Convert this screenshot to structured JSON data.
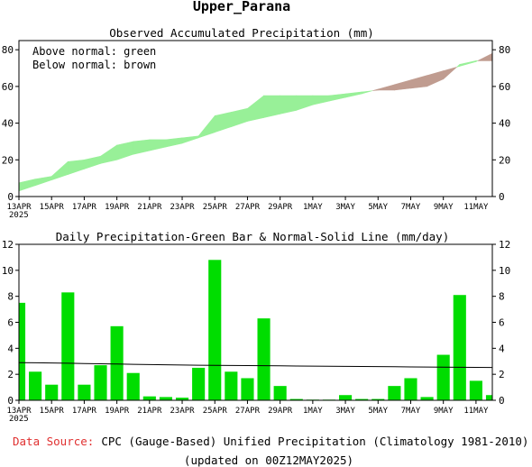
{
  "figure_title": "Upper_Parana",
  "footer": {
    "source_label": "Data Source:",
    "source_text": "CPC (Gauge-Based) Unified Precipitation (Climatology 1981-2010)",
    "updated": "(updated on 00Z12MAY2025)"
  },
  "colors": {
    "above": "#98f098",
    "below": "#c09c90",
    "bar": "#00dd00",
    "normal_line": "#000000",
    "source_label": "#e03030"
  },
  "chart_data": [
    {
      "type": "area",
      "title": "Observed Accumulated Precipitation (mm)",
      "legend": [
        "Above normal: green",
        "Below normal: brown"
      ],
      "legend_position": "top-left",
      "ylim": [
        0,
        85
      ],
      "yticks": [
        0,
        20,
        40,
        60,
        80
      ],
      "x": [
        "13APR",
        "14APR",
        "15APR",
        "16APR",
        "17APR",
        "18APR",
        "19APR",
        "20APR",
        "21APR",
        "22APR",
        "23APR",
        "24APR",
        "25APR",
        "26APR",
        "27APR",
        "28APR",
        "29APR",
        "30APR",
        "1MAY",
        "2MAY",
        "3MAY",
        "4MAY",
        "5MAY",
        "6MAY",
        "7MAY",
        "8MAY",
        "9MAY",
        "10MAY",
        "11MAY",
        "12MAY"
      ],
      "xtick_labels": [
        "13APR",
        "15APR",
        "17APR",
        "19APR",
        "21APR",
        "23APR",
        "25APR",
        "27APR",
        "29APR",
        "1MAY",
        "3MAY",
        "5MAY",
        "7MAY",
        "9MAY",
        "11MAY"
      ],
      "year_label": "2025",
      "series": [
        {
          "name": "Observed",
          "values": [
            7.5,
            9.5,
            11,
            19,
            20,
            22,
            28,
            30,
            31,
            31,
            32,
            33,
            44,
            46,
            48,
            55,
            55,
            55,
            55,
            55,
            56,
            57,
            58,
            58,
            59,
            60,
            64,
            72,
            74,
            74
          ]
        },
        {
          "name": "Normal",
          "values": [
            3,
            6,
            9,
            12,
            15,
            18,
            20,
            23,
            25,
            27,
            29,
            32,
            35,
            38,
            41,
            43,
            45,
            47,
            50,
            52,
            54,
            56,
            58.5,
            61,
            63.5,
            66,
            68.5,
            71,
            73.5,
            78
          ]
        }
      ]
    },
    {
      "type": "bar",
      "title": "Daily Precipitation-Green Bar & Normal-Solid Line (mm/day)",
      "ylim": [
        0,
        12
      ],
      "yticks": [
        0,
        2,
        4,
        6,
        8,
        10,
        12
      ],
      "categories": [
        "13APR",
        "14APR",
        "15APR",
        "16APR",
        "17APR",
        "18APR",
        "19APR",
        "20APR",
        "21APR",
        "22APR",
        "23APR",
        "24APR",
        "25APR",
        "26APR",
        "27APR",
        "28APR",
        "29APR",
        "30APR",
        "1MAY",
        "2MAY",
        "3MAY",
        "4MAY",
        "5MAY",
        "6MAY",
        "7MAY",
        "8MAY",
        "9MAY",
        "10MAY",
        "11MAY",
        "12MAY"
      ],
      "xtick_labels": [
        "13APR",
        "15APR",
        "17APR",
        "19APR",
        "21APR",
        "23APR",
        "25APR",
        "27APR",
        "29APR",
        "1MAY",
        "3MAY",
        "5MAY",
        "7MAY",
        "9MAY",
        "11MAY"
      ],
      "year_label": "2025",
      "series": [
        {
          "name": "Daily precipitation",
          "values": [
            7.5,
            2.2,
            1.2,
            8.3,
            1.2,
            2.7,
            5.7,
            2.1,
            0.3,
            0.25,
            0.2,
            2.5,
            10.8,
            2.2,
            1.7,
            6.3,
            1.1,
            0.1,
            0.05,
            0.05,
            0.4,
            0.1,
            0.1,
            1.1,
            1.7,
            0.25,
            3.5,
            8.1,
            1.5,
            0.4
          ]
        },
        {
          "name": "Normal",
          "values": [
            2.9,
            2.89,
            2.87,
            2.85,
            2.83,
            2.81,
            2.79,
            2.77,
            2.75,
            2.73,
            2.71,
            2.7,
            2.69,
            2.68,
            2.67,
            2.66,
            2.65,
            2.64,
            2.63,
            2.62,
            2.61,
            2.6,
            2.59,
            2.58,
            2.57,
            2.56,
            2.55,
            2.54,
            2.53,
            2.52
          ]
        }
      ]
    }
  ]
}
